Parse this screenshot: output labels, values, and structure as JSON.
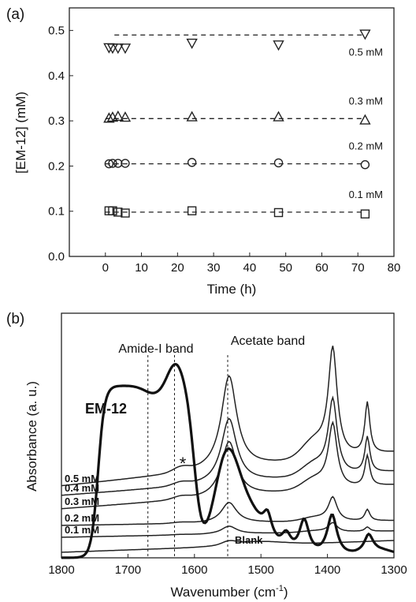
{
  "chart_data": [
    {
      "panel": "(a)",
      "type": "scatter",
      "xlabel": "Time (h)",
      "ylabel": "[EM-12] (mM)",
      "xlim": [
        -10,
        80
      ],
      "ylim": [
        0.0,
        0.55
      ],
      "xticks": [
        0,
        10,
        20,
        30,
        40,
        50,
        60,
        70,
        80
      ],
      "yticks": [
        0.0,
        0.1,
        0.2,
        0.3,
        0.4,
        0.5
      ],
      "grid": false,
      "series": [
        {
          "name": "0.5 mM",
          "marker": "triangle-down",
          "line_y": 0.49,
          "x": [
            1,
            2,
            3.5,
            5.5,
            24,
            48,
            72
          ],
          "y": [
            0.462,
            0.461,
            0.461,
            0.461,
            0.472,
            0.468,
            0.492
          ]
        },
        {
          "name": "0.3 mM",
          "marker": "triangle-up",
          "line_y": 0.305,
          "x": [
            1,
            2,
            3.5,
            5.5,
            24,
            48,
            72
          ],
          "y": [
            0.306,
            0.308,
            0.31,
            0.308,
            0.309,
            0.309,
            0.302
          ]
        },
        {
          "name": "0.2 mM",
          "marker": "circle",
          "line_y": 0.205,
          "x": [
            1,
            2,
            3.5,
            5.5,
            24,
            48,
            72
          ],
          "y": [
            0.205,
            0.206,
            0.206,
            0.206,
            0.208,
            0.207,
            0.203
          ]
        },
        {
          "name": "0.1 mM",
          "marker": "square",
          "line_y": 0.098,
          "x": [
            1,
            2,
            3.5,
            5.5,
            24,
            48,
            72
          ],
          "y": [
            0.101,
            0.101,
            0.098,
            0.096,
            0.101,
            0.097,
            0.094
          ]
        }
      ]
    },
    {
      "panel": "(b)",
      "type": "line",
      "xlabel": "Wavenumber (cm⁻¹)",
      "xlabel_main": "Wavenumber (cm",
      "xlabel_sup": "-1",
      "xlabel_close": ")",
      "ylabel": "Absorbance (a. u.)",
      "xlim": [
        1800,
        1300
      ],
      "xticks": [
        1800,
        1700,
        1600,
        1500,
        1400,
        1300
      ],
      "x_reversed": true,
      "grid": false,
      "reference_lines_x": [
        1670,
        1630,
        1550
      ],
      "annotations": {
        "amide": "Amide-I band",
        "acetate": "Acetate band",
        "star": "*"
      },
      "series": [
        {
          "name": "EM-12",
          "bold": true
        },
        {
          "name": "0.5 mM"
        },
        {
          "name": "0.4 mM"
        },
        {
          "name": "0.3 mM"
        },
        {
          "name": "0.2 mM"
        },
        {
          "name": "0.1 mM"
        },
        {
          "name": "Blank"
        }
      ]
    }
  ]
}
